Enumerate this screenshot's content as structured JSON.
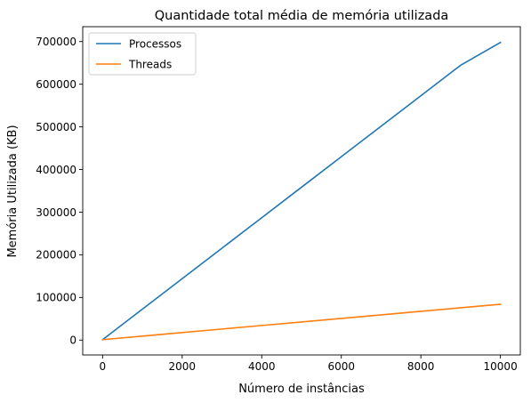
{
  "chart_data": {
    "type": "line",
    "title": "Quantidade total média de memória utilizada",
    "xlabel": "Número de instâncias",
    "ylabel": "Memória Utilizada (KB)",
    "xlim": [
      -500,
      10500
    ],
    "ylim": [
      -34900,
      734900
    ],
    "xticks": [
      0,
      2000,
      4000,
      6000,
      8000,
      10000
    ],
    "yticks": [
      0,
      100000,
      200000,
      300000,
      400000,
      500000,
      600000,
      700000
    ],
    "grid": false,
    "legend_position": "upper-left",
    "series": [
      {
        "name": "Processos",
        "color": "#1f77b4",
        "x": [
          1,
          1000,
          2000,
          3000,
          4000,
          5000,
          6000,
          7000,
          8000,
          9000,
          10000
        ],
        "y": [
          1000,
          72500,
          144000,
          215500,
          287000,
          358500,
          430000,
          501500,
          573000,
          644500,
          698000
        ]
      },
      {
        "name": "Threads",
        "color": "#ff7f0e",
        "x": [
          1,
          1000,
          2000,
          3000,
          4000,
          5000,
          6000,
          7000,
          8000,
          9000,
          10000
        ],
        "y": [
          1000,
          9300,
          17600,
          25900,
          34200,
          42500,
          50800,
          59100,
          67400,
          75700,
          84000
        ]
      }
    ]
  }
}
